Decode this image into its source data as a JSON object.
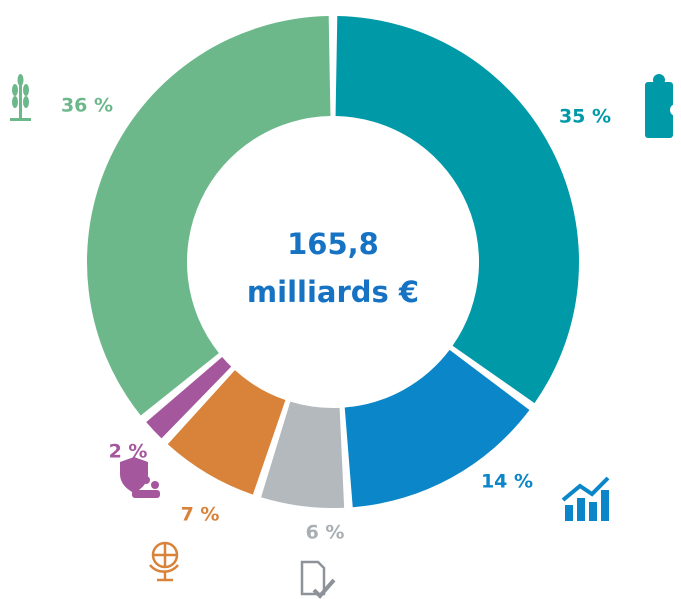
{
  "chart_data": {
    "type": "donut",
    "center_text": [
      "165,8",
      "milliards €"
    ],
    "values": [
      35,
      14,
      6,
      7,
      2,
      36
    ],
    "value_labels": [
      "35 %",
      "14 %",
      "6 %",
      "7 %",
      "2 %",
      "36 %"
    ],
    "colors": [
      "#0099a8",
      "#0a86c9",
      "#b4b9be",
      "#d9833a",
      "#a4579c",
      "#6cb88b"
    ]
  }
}
